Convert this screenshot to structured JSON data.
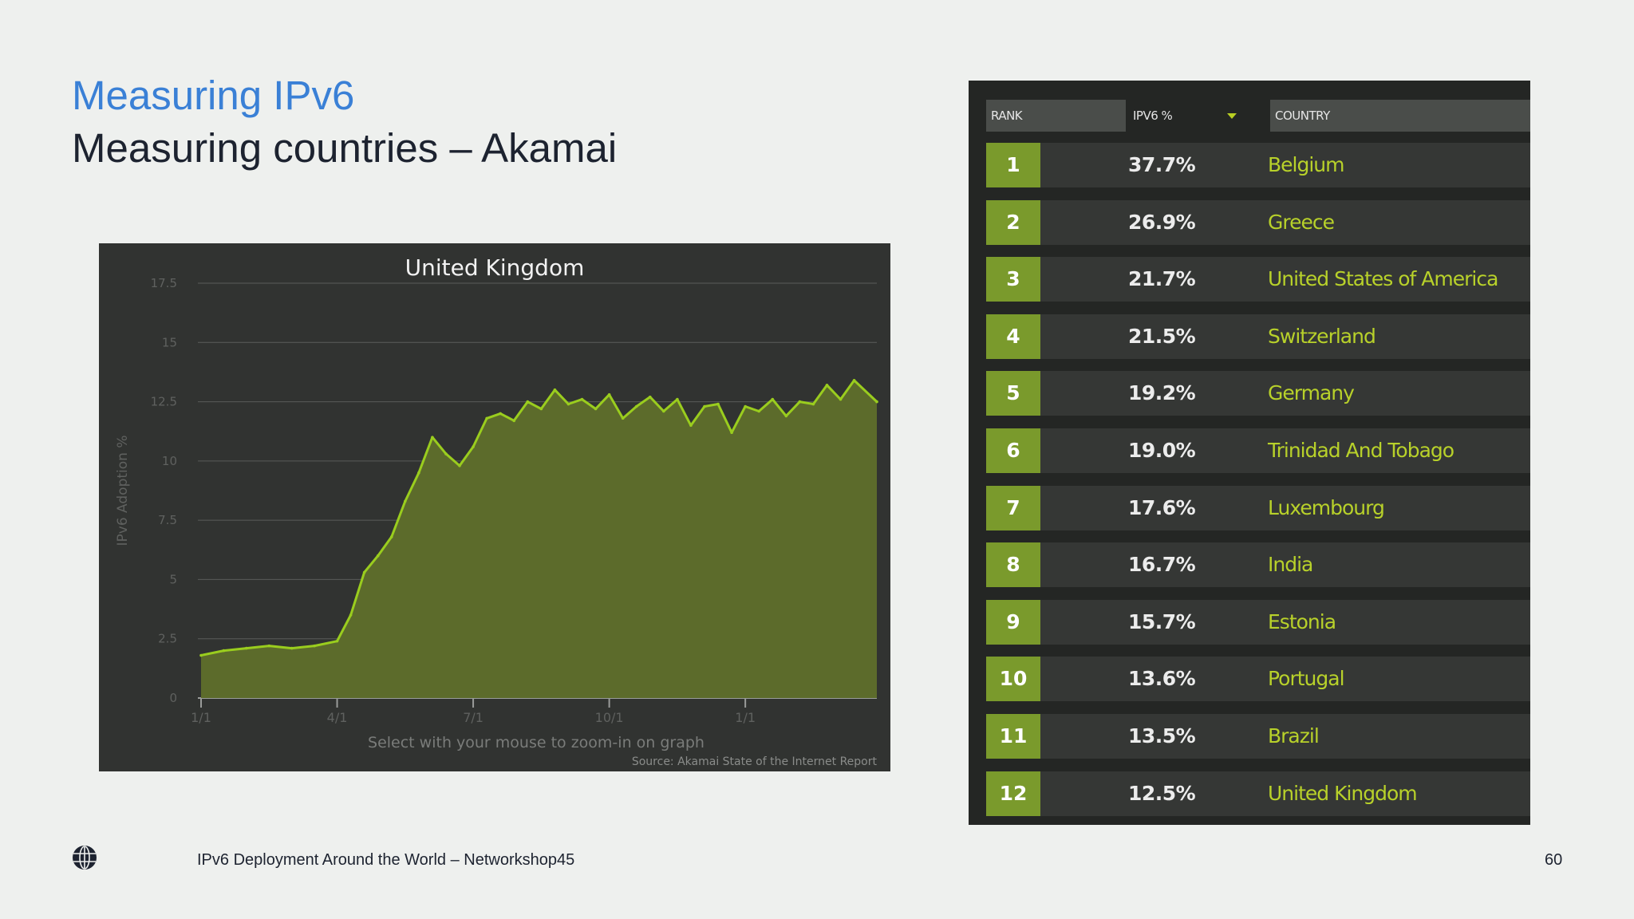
{
  "header": {
    "title": "Measuring IPv6",
    "subtitle": "Measuring countries – Akamai"
  },
  "chart_data": {
    "type": "area",
    "title": "United Kingdom",
    "xlabel": "",
    "ylabel": "IPv6 Adoption %",
    "ylim": [
      0,
      17.5
    ],
    "y_ticks": [
      "0",
      "2.5",
      "5",
      "7.5",
      "10",
      "12.5",
      "15",
      "17.5"
    ],
    "x_ticks": [
      "1/1",
      "4/1",
      "7/1",
      "10/1",
      "1/1"
    ],
    "x_tick_positions": [
      0,
      3,
      6,
      9,
      12
    ],
    "x_months": [
      0,
      0.5,
      1,
      1.5,
      2,
      2.5,
      3,
      3.3,
      3.6,
      3.9,
      4.2,
      4.5,
      4.8,
      5.1,
      5.4,
      5.7,
      6,
      6.3,
      6.6,
      6.9,
      7.2,
      7.5,
      7.8,
      8.1,
      8.4,
      8.7,
      9,
      9.3,
      9.6,
      9.9,
      10.2,
      10.5,
      10.8,
      11.1,
      11.4,
      11.7,
      12,
      12.3,
      12.6,
      12.9,
      13.2,
      13.5,
      13.8,
      14.1,
      14.4,
      14.9
    ],
    "values": [
      1.8,
      2.0,
      2.1,
      2.2,
      2.1,
      2.2,
      2.4,
      3.5,
      5.3,
      6.0,
      6.8,
      8.3,
      9.5,
      11.0,
      10.3,
      9.8,
      10.6,
      11.8,
      12.0,
      11.7,
      12.5,
      12.2,
      13.0,
      12.4,
      12.6,
      12.2,
      12.8,
      11.8,
      12.3,
      12.7,
      12.1,
      12.6,
      11.5,
      12.3,
      12.4,
      11.2,
      12.3,
      12.1,
      12.6,
      11.9,
      12.5,
      12.4,
      13.2,
      12.6,
      13.4,
      12.5
    ],
    "legend": "none",
    "grid": true,
    "annotations": [
      "Select with your mouse to zoom-in on graph",
      "Source: Akamai State of the Internet Report"
    ]
  },
  "table": {
    "headers": [
      "RANK",
      "IPV6 %",
      "COUNTRY"
    ],
    "rows": [
      {
        "rank": "1",
        "pct": "37.7%",
        "country": "Belgium"
      },
      {
        "rank": "2",
        "pct": "26.9%",
        "country": "Greece"
      },
      {
        "rank": "3",
        "pct": "21.7%",
        "country": "United States of America"
      },
      {
        "rank": "4",
        "pct": "21.5%",
        "country": "Switzerland"
      },
      {
        "rank": "5",
        "pct": "19.2%",
        "country": "Germany"
      },
      {
        "rank": "6",
        "pct": "19.0%",
        "country": "Trinidad And Tobago"
      },
      {
        "rank": "7",
        "pct": "17.6%",
        "country": "Luxembourg"
      },
      {
        "rank": "8",
        "pct": "16.7%",
        "country": "India"
      },
      {
        "rank": "9",
        "pct": "15.7%",
        "country": "Estonia"
      },
      {
        "rank": "10",
        "pct": "13.6%",
        "country": "Portugal"
      },
      {
        "rank": "11",
        "pct": "13.5%",
        "country": "Brazil"
      },
      {
        "rank": "12",
        "pct": "12.5%",
        "country": "United Kingdom"
      }
    ]
  },
  "footer": {
    "text": "IPv6 Deployment Around the World – Networkshop45",
    "page_number": "60",
    "logo_icon": "globe-logo-icon"
  },
  "colors": {
    "title_blue": "#3a80d6",
    "chart_line": "#9acd1e",
    "chart_fill": "#5c6b2b",
    "rank_green": "#7a9a2c",
    "country_green": "#b8d12a"
  }
}
